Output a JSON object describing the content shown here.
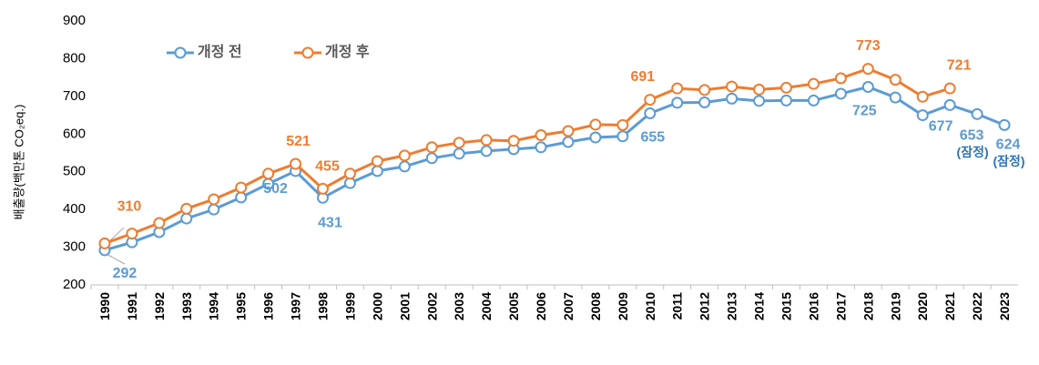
{
  "chart_data": {
    "type": "line",
    "ylabel": "배출량(백만톤 CO₂eq.)",
    "categories": [
      "1990",
      "1991",
      "1992",
      "1993",
      "1994",
      "1995",
      "1996",
      "1997",
      "1998",
      "1999",
      "2000",
      "2001",
      "2002",
      "2003",
      "2004",
      "2005",
      "2006",
      "2007",
      "2008",
      "2009",
      "2010",
      "2011",
      "2012",
      "2013",
      "2014",
      "2015",
      "2016",
      "2017",
      "2018",
      "2019",
      "2020",
      "2021",
      "2022",
      "2023"
    ],
    "series": [
      {
        "name": "개정 전",
        "color": "#5b9bd5",
        "values": [
          292,
          313,
          340,
          376,
          400,
          432,
          468,
          502,
          431,
          470,
          502,
          514,
          536,
          548,
          555,
          560,
          565,
          579,
          591,
          594,
          655,
          683,
          684,
          694,
          688,
          689,
          689,
          707,
          725,
          697,
          650,
          677,
          653,
          624
        ],
        "value_labels": [
          "292",
          null,
          null,
          null,
          null,
          null,
          null,
          "502",
          "431",
          null,
          null,
          null,
          null,
          null,
          null,
          null,
          null,
          null,
          null,
          null,
          "655",
          null,
          null,
          null,
          null,
          null,
          null,
          null,
          "725",
          null,
          null,
          "677",
          "653",
          "624"
        ]
      },
      {
        "name": "개정 후",
        "color": "#ed7d31",
        "values": [
          310,
          336,
          364,
          402,
          427,
          458,
          495,
          521,
          455,
          495,
          528,
          543,
          565,
          577,
          584,
          582,
          597,
          608,
          625,
          624,
          691,
          721,
          717,
          726,
          718,
          723,
          733,
          748,
          773,
          744,
          699,
          721,
          null,
          null
        ],
        "value_labels": [
          "310",
          null,
          null,
          null,
          null,
          null,
          null,
          "521",
          "455",
          null,
          null,
          null,
          null,
          null,
          null,
          null,
          null,
          null,
          null,
          null,
          "691",
          null,
          null,
          null,
          null,
          null,
          null,
          null,
          "773",
          null,
          null,
          "721",
          null,
          null
        ]
      }
    ],
    "annotations": [
      {
        "text": "(잠정)",
        "category": "2022"
      },
      {
        "text": "(잠정)",
        "category": "2023"
      }
    ],
    "ylim": [
      200,
      900
    ],
    "yticks": [
      200,
      300,
      400,
      500,
      600,
      700,
      800,
      900
    ],
    "grid": false,
    "legend": "top-left"
  }
}
